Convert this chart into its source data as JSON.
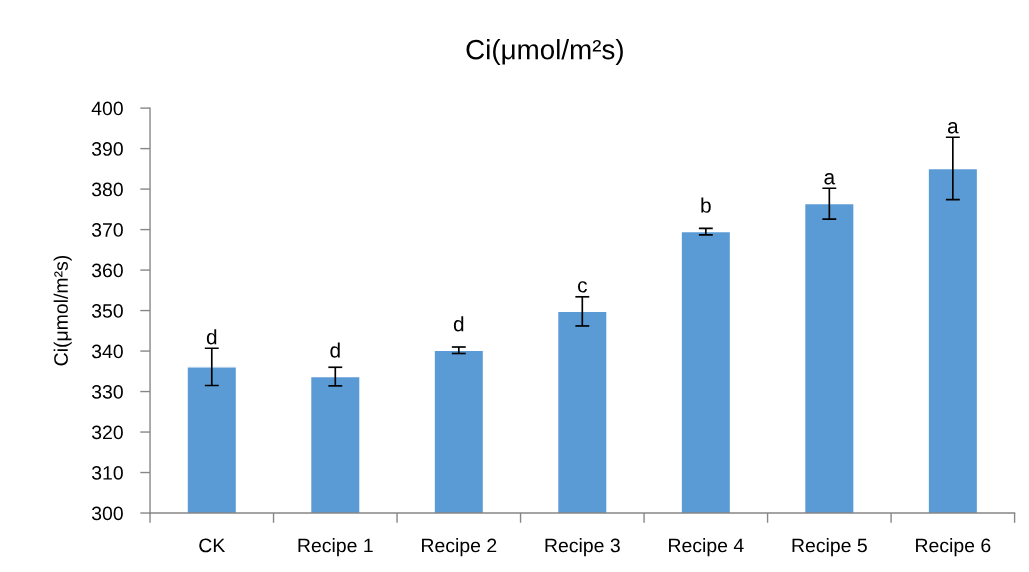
{
  "chart_data": {
    "type": "bar",
    "title": "Ci(μmol/m²s)",
    "ylabel": "Ci(μmol/m²s)",
    "categories": [
      "CK",
      "Recipe 1",
      "Recipe 2",
      "Recipe 3",
      "Recipe 4",
      "Recipe 5",
      "Recipe 6"
    ],
    "values": [
      336.1,
      333.7,
      340.2,
      349.8,
      369.5,
      376.4,
      385.1
    ],
    "errors": [
      4.6,
      2.3,
      0.8,
      3.6,
      0.8,
      3.8,
      7.7
    ],
    "color": "#5b9bd5",
    "ylim": [
      300,
      400
    ],
    "yticks": [
      300,
      310,
      320,
      330,
      340,
      350,
      360,
      370,
      380,
      390,
      400
    ],
    "annotations": [
      {
        "text": "d",
        "x": "CK",
        "y": 336.1
      },
      {
        "text": "d",
        "x": "Recipe 1",
        "y": 333.7
      },
      {
        "text": "d",
        "x": "Recipe 2",
        "y": 340.2
      },
      {
        "text": "c",
        "x": "Recipe 3",
        "y": 349.8
      },
      {
        "text": "b",
        "x": "Recipe 4",
        "y": 369.5
      },
      {
        "text": "a",
        "x": "Recipe 5",
        "y": 376.4
      },
      {
        "text": "a",
        "x": "Recipe 6",
        "y": 385.1
      }
    ]
  }
}
